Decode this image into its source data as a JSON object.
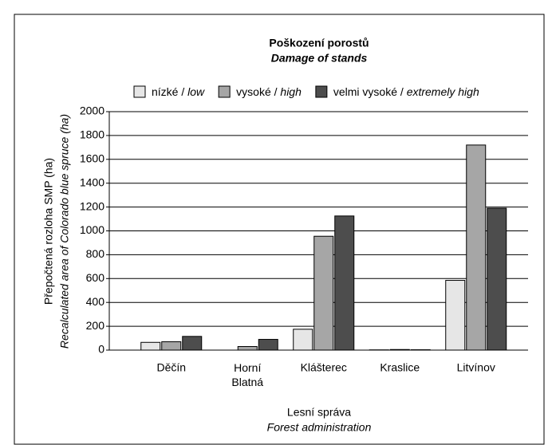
{
  "chart_data": {
    "type": "bar",
    "title": "Poškození porostů",
    "subtitle": "Damage of stands",
    "y_label": "Přepočtená rozloha SMP (ha)",
    "y_label_en": "Recalculated area of Colorado blue spruce (ha)",
    "x_label": "Lesní správa",
    "x_label_en": "Forest administration",
    "categories": [
      "Děčín",
      "Horní Blatná",
      "Klášterec",
      "Kraslice",
      "Litvínov"
    ],
    "series": [
      {
        "name": "nízké / low",
        "color": "#e6e6e6",
        "values": [
          65,
          0,
          175,
          2,
          585
        ]
      },
      {
        "name": "vysoké / high",
        "color": "#a6a6a6",
        "values": [
          70,
          30,
          955,
          5,
          1720
        ]
      },
      {
        "name": "velmi vysoké / extremely high",
        "color": "#4d4d4d",
        "values": [
          115,
          90,
          1125,
          3,
          1190
        ]
      }
    ],
    "ylim": [
      0,
      2000
    ],
    "yticks": [
      0,
      200,
      400,
      600,
      800,
      1000,
      1200,
      1400,
      1600,
      1800,
      2000
    ],
    "grid": true,
    "legend": "top"
  }
}
